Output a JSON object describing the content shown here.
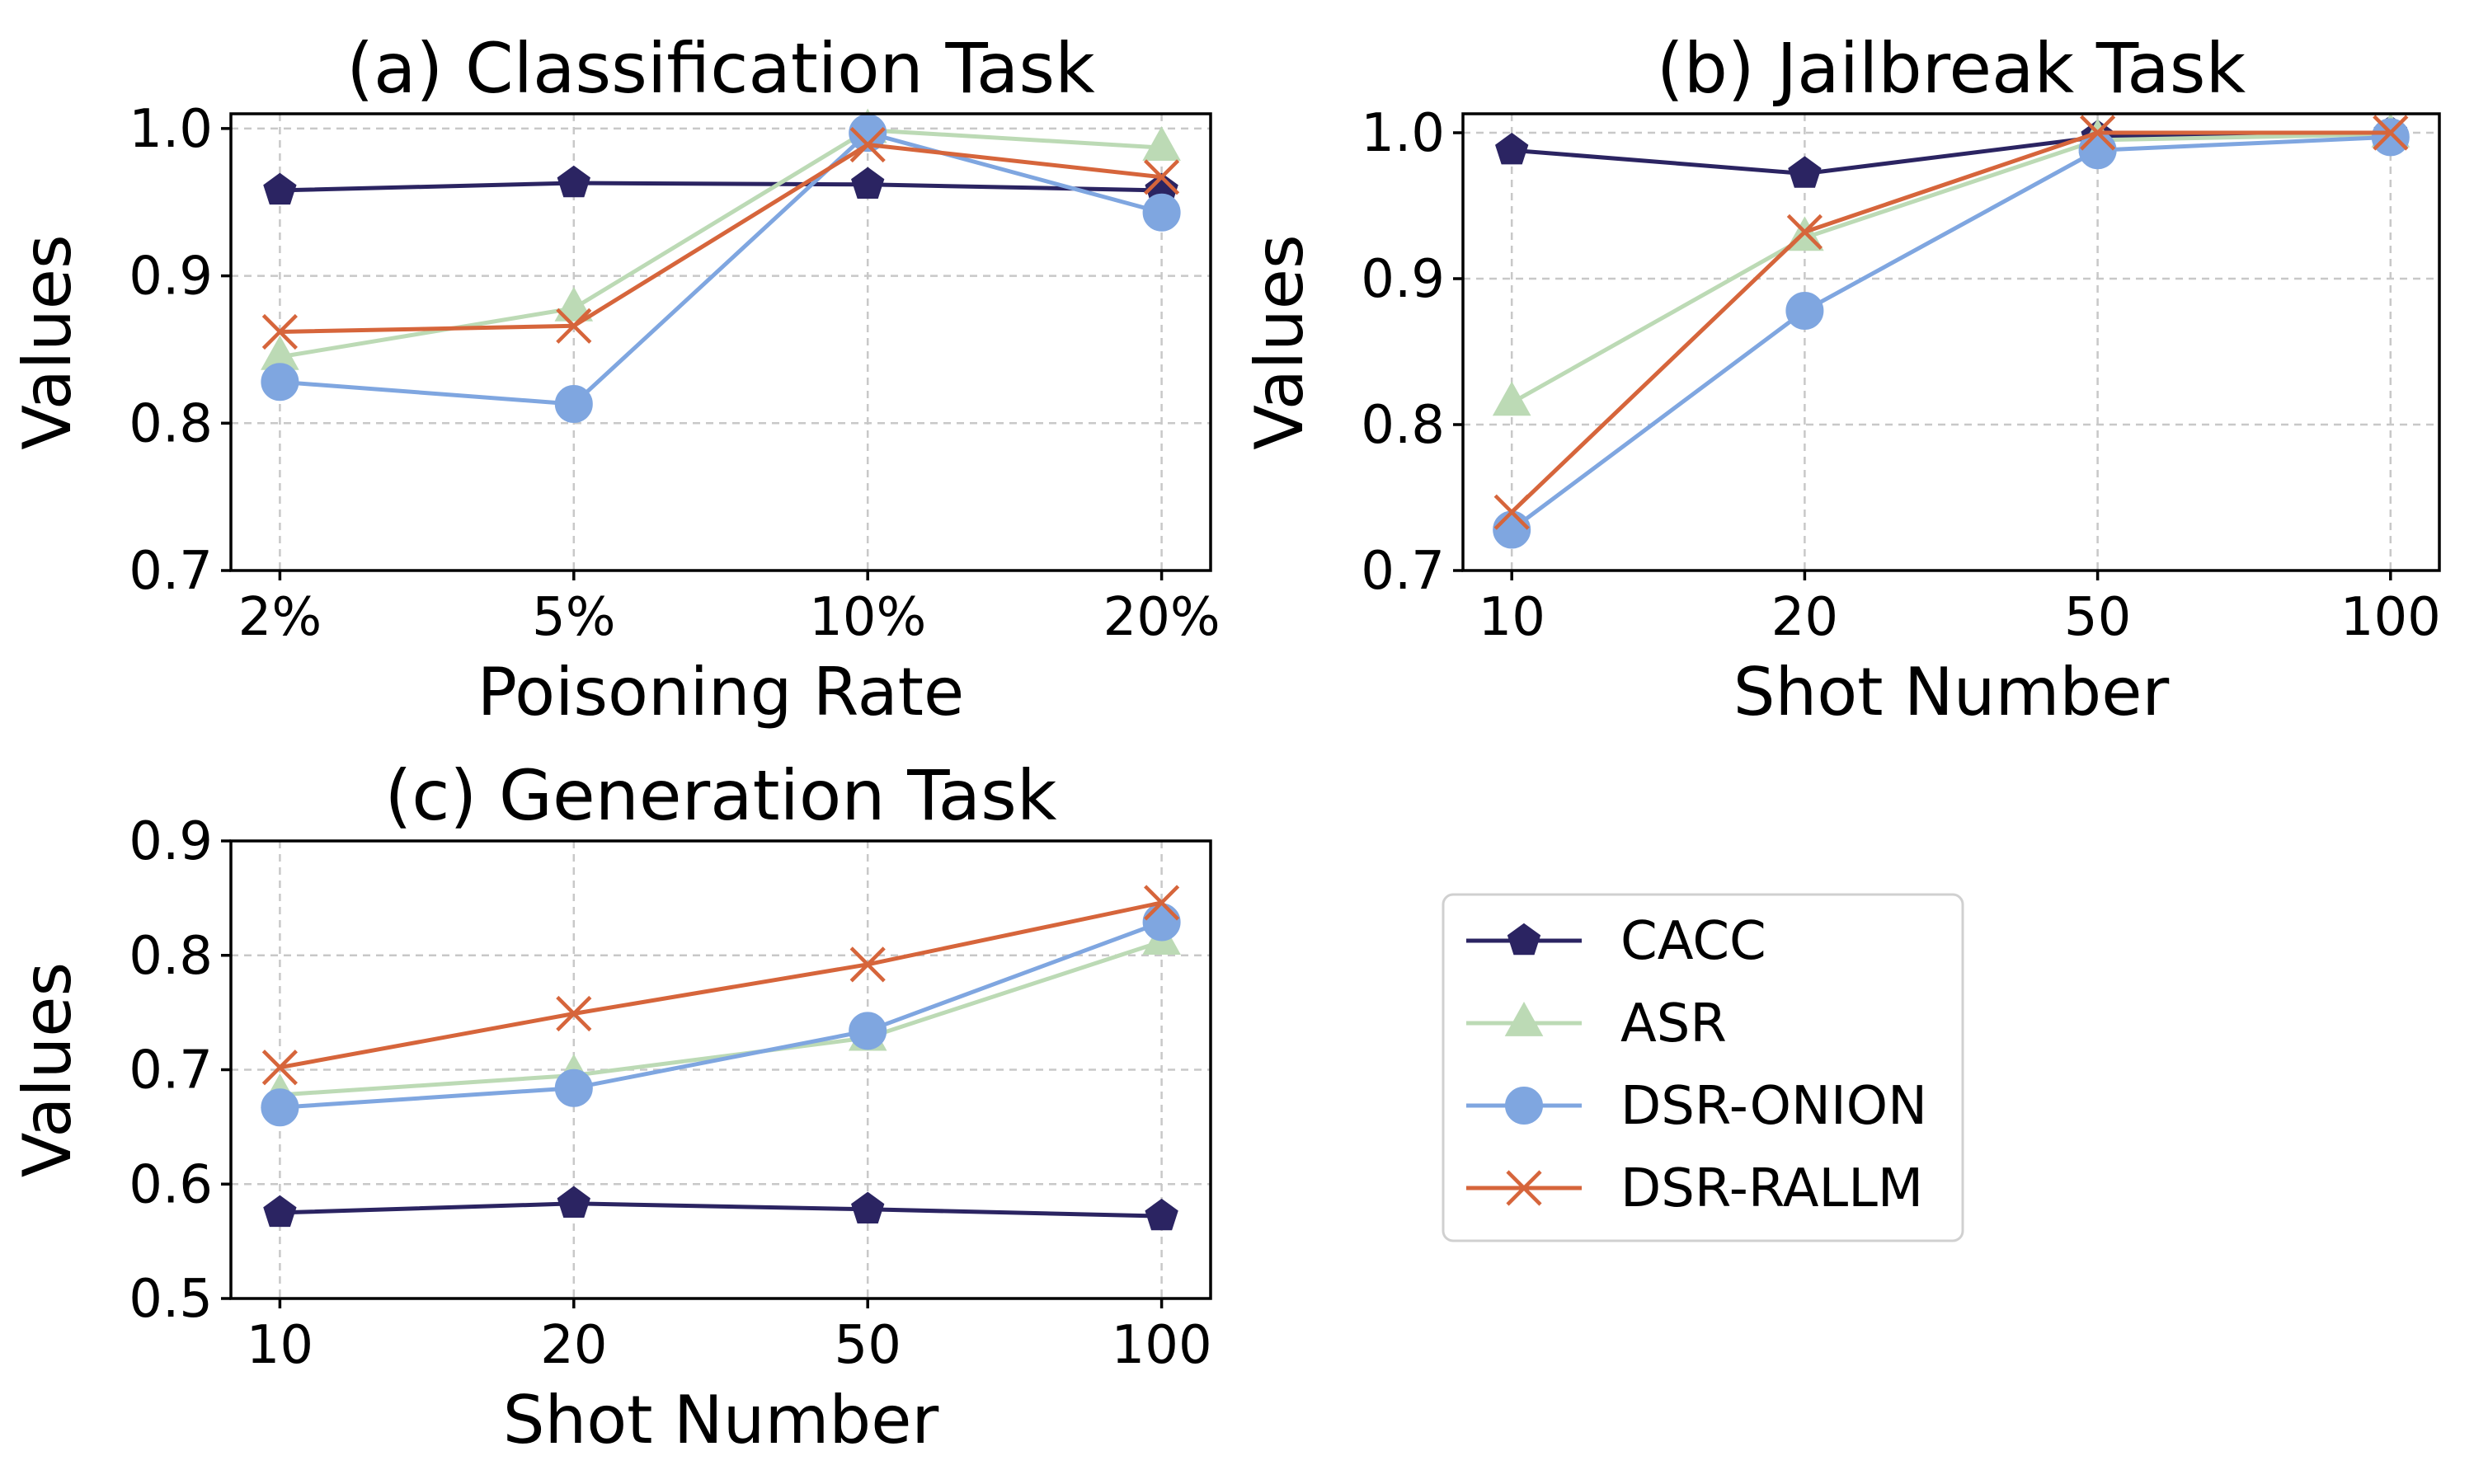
{
  "series_styles": [
    {
      "key": "CACC",
      "label": "CACC",
      "color": "#2b2462",
      "marker": "pentagon"
    },
    {
      "key": "ASR",
      "label": "ASR",
      "color": "#bcdab5",
      "marker": "triangle"
    },
    {
      "key": "DSR_ONION",
      "label": "DSR-ONION",
      "color": "#7fa6e0",
      "marker": "circle"
    },
    {
      "key": "DSR_RALLM",
      "label": "DSR-RALLM",
      "color": "#d6653b",
      "marker": "x"
    }
  ],
  "chart_data": [
    {
      "type": "line",
      "title": "(a) Classification Task",
      "xlabel": "Poisoning Rate",
      "ylabel": "Values",
      "categories": [
        "2%",
        "5%",
        "10%",
        "20%"
      ],
      "ylim": [
        0.7,
        1.01
      ],
      "yticks": [
        "0.7",
        "0.8",
        "0.9",
        "1.0"
      ],
      "grid": true,
      "series": [
        {
          "name": "CACC",
          "values": [
            0.958,
            0.963,
            0.962,
            0.958
          ]
        },
        {
          "name": "ASR",
          "values": [
            0.845,
            0.878,
            0.999,
            0.987
          ]
        },
        {
          "name": "DSR-ONION",
          "values": [
            0.828,
            0.813,
            0.997,
            0.943
          ]
        },
        {
          "name": "DSR-RALLM",
          "values": [
            0.862,
            0.866,
            0.989,
            0.967
          ]
        }
      ]
    },
    {
      "type": "line",
      "title": "(b) Jailbreak Task",
      "xlabel": "Shot Number",
      "ylabel": "Values",
      "categories": [
        "10",
        "20",
        "50",
        "100"
      ],
      "ylim": [
        0.7,
        1.013
      ],
      "yticks": [
        "0.7",
        "0.8",
        "0.9",
        "1.0"
      ],
      "grid": true,
      "series": [
        {
          "name": "CACC",
          "values": [
            0.988,
            0.972,
            0.997,
            1.0
          ]
        },
        {
          "name": "ASR",
          "values": [
            0.815,
            0.928,
            0.995,
            0.999
          ]
        },
        {
          "name": "DSR-ONION",
          "values": [
            0.728,
            0.878,
            0.988,
            0.997
          ]
        },
        {
          "name": "DSR-RALLM",
          "values": [
            0.74,
            0.932,
            1.0,
            1.0
          ]
        }
      ]
    },
    {
      "type": "line",
      "title": "(c) Generation Task",
      "xlabel": "Shot Number",
      "ylabel": "Values",
      "categories": [
        "10",
        "20",
        "50",
        "100"
      ],
      "ylim": [
        0.5,
        0.9
      ],
      "yticks": [
        "0.5",
        "0.6",
        "0.7",
        "0.8",
        "0.9"
      ],
      "grid": true,
      "series": [
        {
          "name": "CACC",
          "values": [
            0.575,
            0.583,
            0.578,
            0.572
          ]
        },
        {
          "name": "ASR",
          "values": [
            0.678,
            0.695,
            0.728,
            0.812
          ]
        },
        {
          "name": "DSR-ONION",
          "values": [
            0.667,
            0.684,
            0.734,
            0.829
          ]
        },
        {
          "name": "DSR-RALLM",
          "values": [
            0.702,
            0.749,
            0.792,
            0.846
          ]
        }
      ]
    }
  ],
  "legend": {
    "placement": "lower-right",
    "items": [
      "CACC",
      "ASR",
      "DSR-ONION",
      "DSR-RALLM"
    ]
  }
}
